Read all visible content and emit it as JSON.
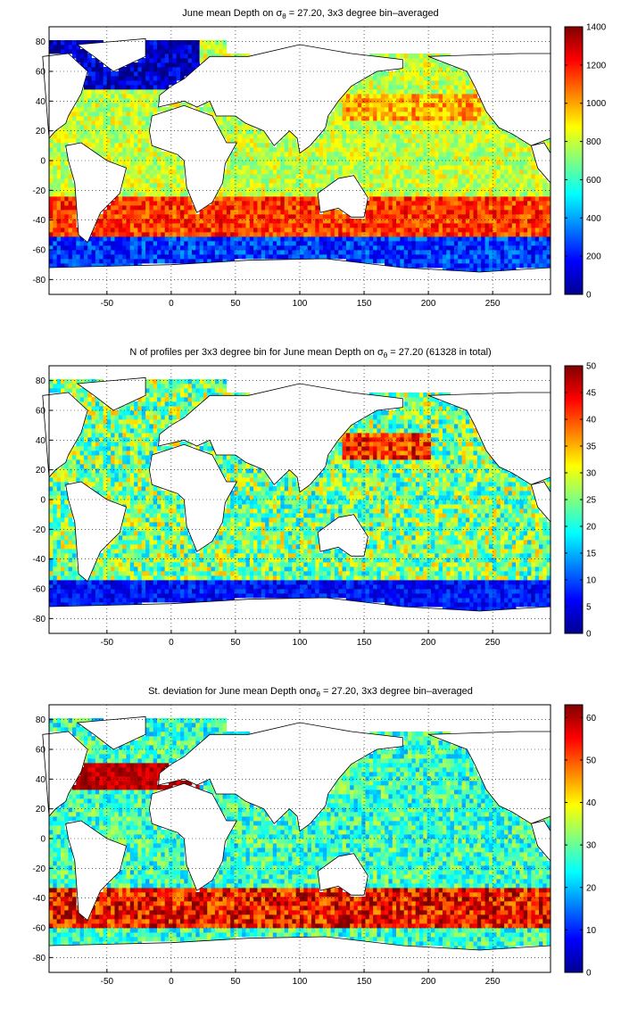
{
  "colormap": "jet",
  "chart_data": [
    {
      "type": "heatmap",
      "title": "June mean Depth on σθ = 27.20, 3x3 degree bin–averaged",
      "title_parts": {
        "pre": "June mean Depth on ",
        "sigma": "σ",
        "sub": "θ",
        "post": " = 27.20, 3x3 degree bin–averaged"
      },
      "x_ticks": [
        -50,
        0,
        50,
        100,
        150,
        200,
        250
      ],
      "y_ticks": [
        -80,
        -60,
        -40,
        -20,
        0,
        20,
        40,
        60,
        80
      ],
      "xlim": [
        -95,
        295
      ],
      "ylim": [
        -90,
        90
      ],
      "grid": true,
      "colorbar": {
        "min": 0,
        "max": 1400,
        "ticks": [
          0,
          200,
          400,
          600,
          800,
          1000,
          1200,
          1400
        ]
      },
      "field": "depth"
    },
    {
      "type": "heatmap",
      "title": "N of profiles per 3x3 degree bin for June mean Depth on σθ = 27.20 (61328 in total)",
      "title_parts": {
        "pre": "N of profiles per 3x3 degree bin for June mean Depth on ",
        "sigma": "σ",
        "sub": "θ",
        "post": " = 27.20 (61328 in total)"
      },
      "x_ticks": [
        -50,
        0,
        50,
        100,
        150,
        200,
        250
      ],
      "y_ticks": [
        -80,
        -60,
        -40,
        -20,
        0,
        20,
        40,
        60,
        80
      ],
      "xlim": [
        -95,
        295
      ],
      "ylim": [
        -90,
        90
      ],
      "grid": true,
      "colorbar": {
        "min": 0,
        "max": 50,
        "ticks": [
          0,
          5,
          10,
          15,
          20,
          25,
          30,
          35,
          40,
          45,
          50
        ]
      },
      "field": "count"
    },
    {
      "type": "heatmap",
      "title": "St. deviation for June mean Depth on σθ = 27.20, 3x3 degree bin–averaged",
      "title_parts": {
        "pre": "St. deviation for June mean Depth on",
        "sigma": "σ",
        "sub": "θ",
        "post": " = 27.20, 3x3 degree bin–averaged"
      },
      "x_ticks": [
        -50,
        0,
        50,
        100,
        150,
        200,
        250
      ],
      "y_ticks": [
        -80,
        -60,
        -40,
        -20,
        0,
        20,
        40,
        60,
        80
      ],
      "xlim": [
        -95,
        295
      ],
      "ylim": [
        -90,
        90
      ],
      "grid": true,
      "colorbar": {
        "min": 0,
        "max": 63,
        "ticks": [
          0,
          10,
          20,
          30,
          40,
          50,
          60
        ]
      },
      "field": "std"
    }
  ]
}
